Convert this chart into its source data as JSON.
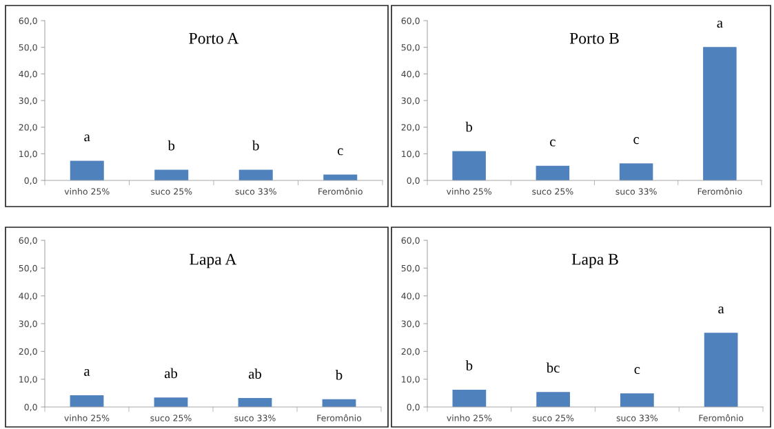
{
  "chart_data": [
    {
      "type": "bar",
      "title": "Porto A",
      "categories": [
        "vinho 25%",
        "suco 25%",
        "suco 33%",
        "Feromônio"
      ],
      "values": [
        7.4,
        4.0,
        4.0,
        2.2
      ],
      "color": "#4f81bd",
      "ylim": [
        0,
        60
      ],
      "yticks": [
        {
          "value": 0,
          "label": "0,0"
        },
        {
          "value": 10,
          "label": "10,0"
        },
        {
          "value": 20,
          "label": "20,0"
        },
        {
          "value": 30,
          "label": "30,0"
        },
        {
          "value": 40,
          "label": "40,0"
        },
        {
          "value": 50,
          "label": "50,0"
        },
        {
          "value": 60,
          "label": "60,0"
        }
      ],
      "grid": false,
      "annotations": [
        "a",
        "b",
        "b",
        "c"
      ]
    },
    {
      "type": "bar",
      "title": "Porto B",
      "categories": [
        "vinho 25%",
        "suco 25%",
        "suco 33%",
        "Feromônio"
      ],
      "values": [
        11.0,
        5.5,
        6.4,
        50.1
      ],
      "color": "#4f81bd",
      "ylim": [
        0,
        60
      ],
      "yticks": [
        {
          "value": 0,
          "label": "0,0"
        },
        {
          "value": 10,
          "label": "10,0"
        },
        {
          "value": 20,
          "label": "20,0"
        },
        {
          "value": 30,
          "label": "30,0"
        },
        {
          "value": 40,
          "label": "40,0"
        },
        {
          "value": 50,
          "label": "50,0"
        },
        {
          "value": 60,
          "label": "60,0"
        }
      ],
      "grid": false,
      "annotations": [
        "b",
        "c",
        "c",
        "a"
      ]
    },
    {
      "type": "bar",
      "title": "Lapa A",
      "categories": [
        "vinho 25%",
        "suco 25%",
        "suco 33%",
        "Feromônio"
      ],
      "values": [
        4.2,
        3.4,
        3.2,
        2.8
      ],
      "color": "#4f81bd",
      "ylim": [
        0,
        60
      ],
      "yticks": [
        {
          "value": 0,
          "label": "0,0"
        },
        {
          "value": 10,
          "label": "10,0"
        },
        {
          "value": 20,
          "label": "20,0"
        },
        {
          "value": 30,
          "label": "30,0"
        },
        {
          "value": 40,
          "label": "40,0"
        },
        {
          "value": 50,
          "label": "50,0"
        },
        {
          "value": 60,
          "label": "60,0"
        }
      ],
      "grid": false,
      "annotations": [
        "a",
        "ab",
        "ab",
        "b"
      ]
    },
    {
      "type": "bar",
      "title": "Lapa B",
      "categories": [
        "vinho 25%",
        "suco 25%",
        "suco 33%",
        "Feromônio"
      ],
      "values": [
        6.2,
        5.4,
        4.9,
        26.7
      ],
      "color": "#4f81bd",
      "ylim": [
        0,
        60
      ],
      "yticks": [
        {
          "value": 0,
          "label": "0,0"
        },
        {
          "value": 10,
          "label": "10,0"
        },
        {
          "value": 20,
          "label": "20,0"
        },
        {
          "value": 30,
          "label": "30,0"
        },
        {
          "value": 40,
          "label": "40,0"
        },
        {
          "value": 50,
          "label": "50,0"
        },
        {
          "value": 60,
          "label": "60,0"
        }
      ],
      "grid": false,
      "annotations": [
        "b",
        "bc",
        "c",
        "a"
      ]
    }
  ]
}
